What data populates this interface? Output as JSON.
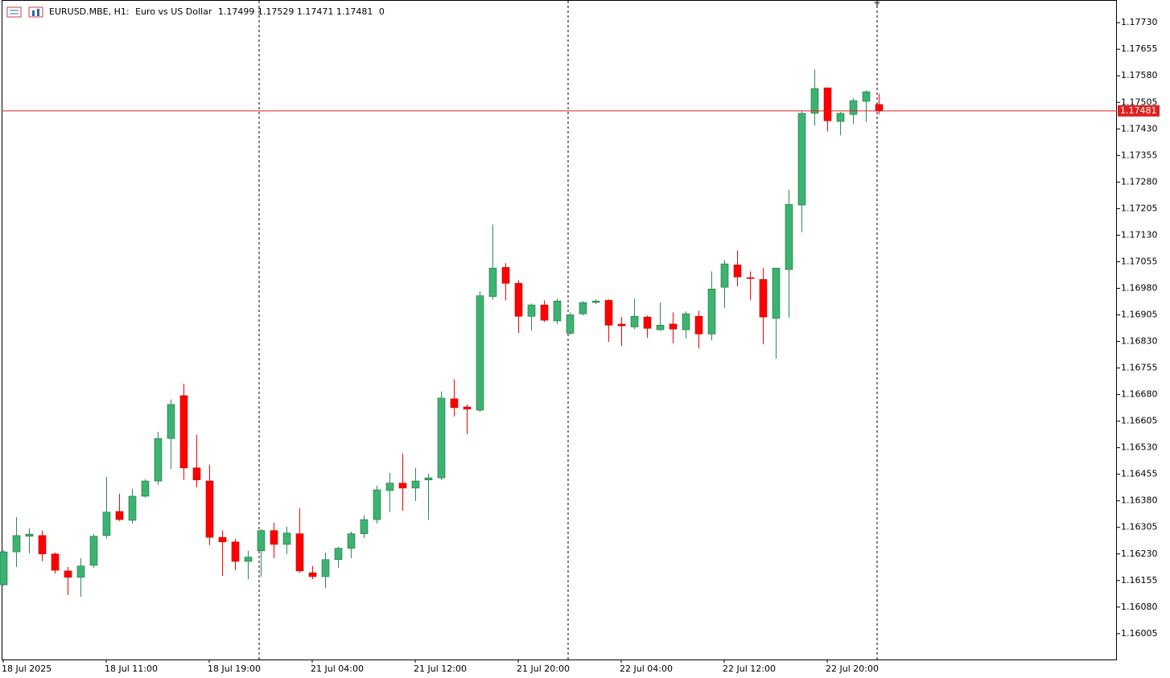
{
  "chart_data": {
    "type": "candlestick",
    "symbol": "EURUSD.MBE, H1:",
    "description": "Euro vs US Dollar",
    "spread": 0,
    "up_color": "#3cb371",
    "down_color": "#ff0000",
    "last_price_color": "#e02020",
    "categories": [
      "18 Jul 2025",
      null,
      null,
      null,
      null,
      null,
      null,
      null,
      "18 Jul 11:00",
      null,
      null,
      null,
      null,
      null,
      null,
      null,
      "18 Jul 19:00",
      null,
      null,
      null,
      null,
      null,
      null,
      null,
      "21 Jul 04:00",
      null,
      null,
      null,
      null,
      null,
      null,
      null,
      "21 Jul 12:00",
      null,
      null,
      null,
      null,
      null,
      null,
      null,
      "21 Jul 20:00",
      null,
      null,
      null,
      null,
      null,
      null,
      null,
      "22 Jul 04:00",
      null,
      null,
      null,
      null,
      null,
      null,
      null,
      "22 Jul 12:00",
      null,
      null,
      null,
      null,
      null,
      null,
      null,
      "22 Jul 20:00",
      null,
      null,
      null,
      null
    ],
    "open": [
      1.16143,
      1.16236,
      1.1628,
      1.16282,
      1.1623,
      1.16182,
      1.16164,
      1.16198,
      1.16282,
      1.1635,
      1.16325,
      1.16393,
      1.16436,
      1.16556,
      1.16677,
      1.16473,
      1.16436,
      1.16277,
      1.16264,
      1.16209,
      1.16239,
      1.16296,
      1.16257,
      1.16287,
      1.16177,
      1.16166,
      1.16214,
      1.16246,
      1.16287,
      1.16327,
      1.16409,
      1.1643,
      1.16416,
      1.16439,
      1.16445,
      1.16668,
      1.16645,
      1.16636,
      1.16957,
      1.17039,
      1.16994,
      1.16901,
      1.16933,
      1.16888,
      1.16853,
      1.16908,
      1.1694,
      1.16946,
      1.16879,
      1.16871,
      1.16899,
      1.16863,
      1.16879,
      1.16863,
      1.16901,
      1.16851,
      1.16983,
      1.17046,
      1.1701,
      1.17005,
      1.16895,
      1.17033,
      1.17215,
      1.17474,
      1.17546,
      1.17451,
      1.17471,
      1.17508,
      1.17499
    ],
    "high": [
      1.16241,
      1.16334,
      1.16302,
      1.16296,
      1.16234,
      1.16193,
      1.16218,
      1.16286,
      1.16448,
      1.164,
      1.16414,
      1.16441,
      1.16575,
      1.16666,
      1.16711,
      1.16566,
      1.16482,
      1.16296,
      1.16273,
      1.16239,
      1.163,
      1.16318,
      1.16307,
      1.16359,
      1.16196,
      1.16234,
      1.1625,
      1.16293,
      1.16339,
      1.16423,
      1.16459,
      1.16513,
      1.16473,
      1.16457,
      1.16689,
      1.16723,
      1.16652,
      1.16972,
      1.1716,
      1.17051,
      1.17003,
      1.16937,
      1.16946,
      1.16951,
      1.16912,
      1.16944,
      1.16949,
      1.16949,
      1.16899,
      1.16951,
      1.16903,
      1.1694,
      1.16912,
      1.16915,
      1.16917,
      1.17028,
      1.1706,
      1.17087,
      1.17028,
      1.17037,
      1.17037,
      1.17258,
      1.1748,
      1.17598,
      1.17546,
      1.17478,
      1.17517,
      1.17539,
      1.17529
    ],
    "low": [
      1.16141,
      1.16193,
      1.16232,
      1.16209,
      1.16175,
      1.16114,
      1.16109,
      1.16191,
      1.16273,
      1.16323,
      1.16316,
      1.16389,
      1.16425,
      1.1647,
      1.16439,
      1.16418,
      1.16255,
      1.16168,
      1.16184,
      1.16159,
      1.16166,
      1.16218,
      1.1623,
      1.16177,
      1.16159,
      1.16134,
      1.16191,
      1.16218,
      1.16275,
      1.16316,
      1.16348,
      1.16352,
      1.1638,
      1.16327,
      1.16439,
      1.16618,
      1.16568,
      1.16631,
      1.16948,
      1.16946,
      1.16854,
      1.1686,
      1.16885,
      1.16879,
      1.16849,
      1.16904,
      1.16935,
      1.16829,
      1.16817,
      1.16865,
      1.1684,
      1.1686,
      1.16824,
      1.16838,
      1.1681,
      1.16833,
      1.16924,
      1.16985,
      1.16947,
      1.16822,
      1.16781,
      1.16897,
      1.17138,
      1.17439,
      1.17423,
      1.17412,
      1.17444,
      1.17449,
      1.17471
    ],
    "close": [
      1.16236,
      1.16282,
      1.16286,
      1.1623,
      1.16184,
      1.16164,
      1.16196,
      1.1628,
      1.16348,
      1.16327,
      1.16393,
      1.16436,
      1.16556,
      1.16652,
      1.16473,
      1.16439,
      1.16277,
      1.16264,
      1.16209,
      1.16221,
      1.16296,
      1.16257,
      1.16289,
      1.16182,
      1.16166,
      1.16214,
      1.16246,
      1.16287,
      1.16327,
      1.16411,
      1.1643,
      1.16416,
      1.16436,
      1.16445,
      1.1667,
      1.16643,
      1.16639,
      1.16959,
      1.17037,
      1.16994,
      1.16901,
      1.16933,
      1.1689,
      1.16944,
      1.16905,
      1.1694,
      1.16944,
      1.16876,
      1.16874,
      1.16901,
      1.16867,
      1.16876,
      1.16865,
      1.16908,
      1.16851,
      1.16978,
      1.17049,
      1.17012,
      1.17008,
      1.16899,
      1.17037,
      1.17217,
      1.17474,
      1.17544,
      1.17453,
      1.17474,
      1.1751,
      1.17535,
      1.17481
    ],
    "ylim": [
      1.15932,
      1.17794
    ],
    "yticks": [
      {
        "value": 1.1773,
        "label": "1.17730"
      },
      {
        "value": 1.17655,
        "label": "1.17655"
      },
      {
        "value": 1.1758,
        "label": "1.17580"
      },
      {
        "value": 1.17505,
        "label": "1.17505"
      },
      {
        "value": 1.1743,
        "label": "1.17430"
      },
      {
        "value": 1.17355,
        "label": "1.17355"
      },
      {
        "value": 1.1728,
        "label": "1.17280"
      },
      {
        "value": 1.17205,
        "label": "1.17205"
      },
      {
        "value": 1.1713,
        "label": "1.17130"
      },
      {
        "value": 1.17055,
        "label": "1.17055"
      },
      {
        "value": 1.1698,
        "label": "1.16980"
      },
      {
        "value": 1.16905,
        "label": "1.16905"
      },
      {
        "value": 1.1683,
        "label": "1.16830"
      },
      {
        "value": 1.16755,
        "label": "1.16755"
      },
      {
        "value": 1.1668,
        "label": "1.16680"
      },
      {
        "value": 1.16605,
        "label": "1.16605"
      },
      {
        "value": 1.1653,
        "label": "1.16530"
      },
      {
        "value": 1.16455,
        "label": "1.16455"
      },
      {
        "value": 1.1638,
        "label": "1.16380"
      },
      {
        "value": 1.16305,
        "label": "1.16305"
      },
      {
        "value": 1.1623,
        "label": "1.16230"
      },
      {
        "value": 1.16155,
        "label": "1.16155"
      },
      {
        "value": 1.1608,
        "label": "1.16080"
      },
      {
        "value": 1.16005,
        "label": "1.16005"
      }
    ],
    "grid": false
  }
}
